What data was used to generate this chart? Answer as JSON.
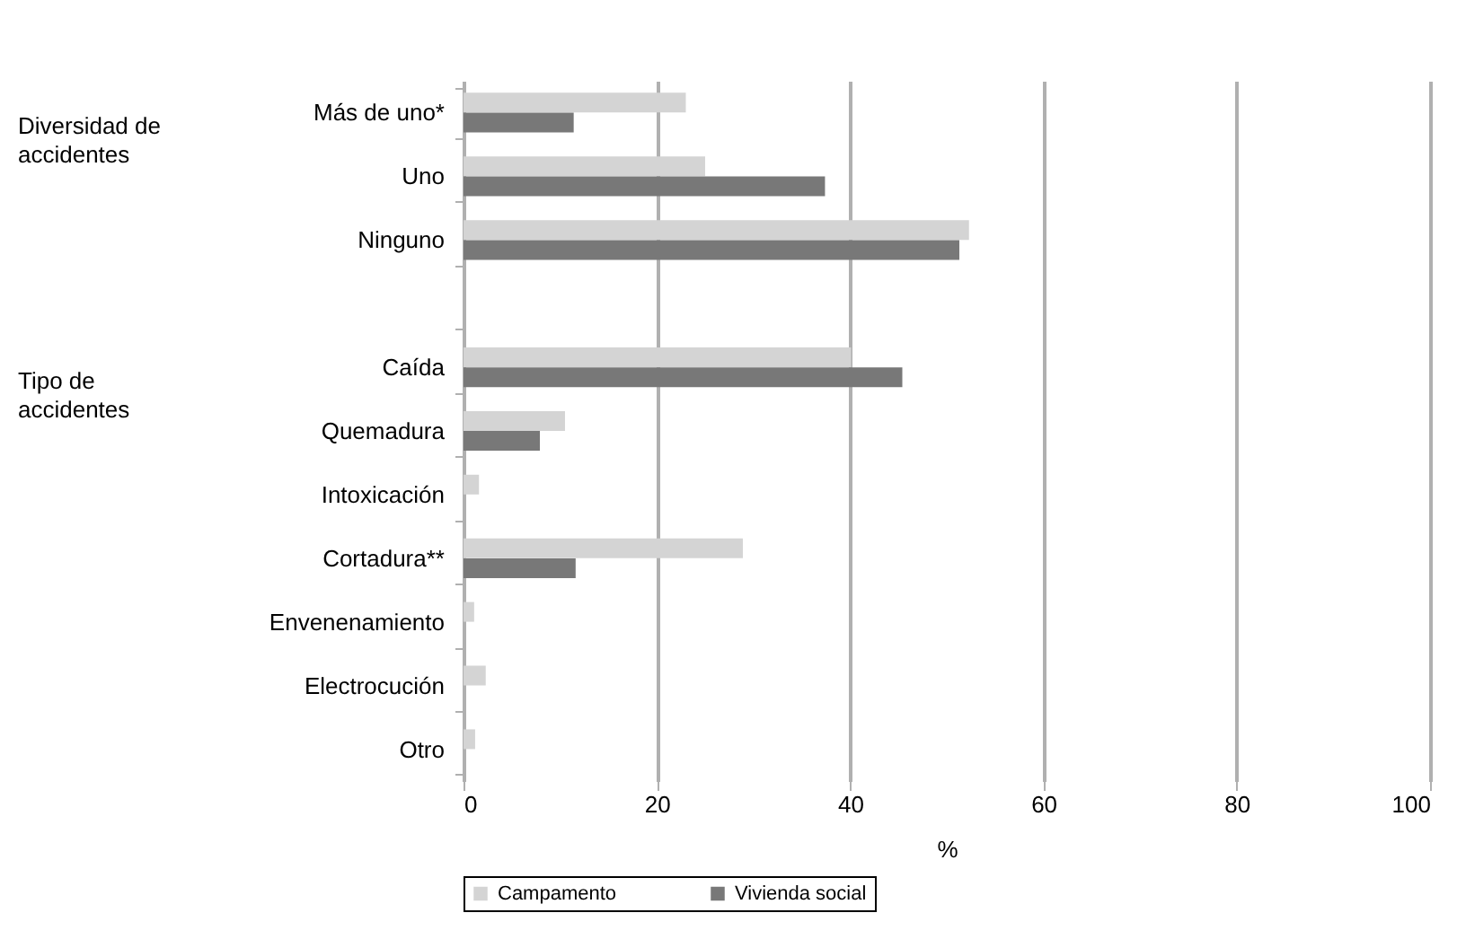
{
  "chart_data": {
    "type": "bar",
    "orientation": "horizontal",
    "xlabel": "%",
    "categories": [
      "Más de uno*",
      "Uno",
      "Ninguno",
      null,
      "Caída",
      "Quemadura",
      "Intoxicación",
      "Cortadura**",
      "Envenenamiento",
      "Electrocución",
      "Otro"
    ],
    "series": [
      {
        "name": "Campamento",
        "color": "#d4d4d4",
        "values": [
          23,
          25.0,
          52.3,
          null,
          40.1,
          10.5,
          1.6,
          28.9,
          1.1,
          2.3,
          1.2
        ]
      },
      {
        "name": "Vivienda social",
        "color": "#787878",
        "values": [
          11.4,
          37.4,
          51.3,
          null,
          45.4,
          7.9,
          0,
          11.6,
          0,
          0,
          0
        ]
      }
    ],
    "xlim": [
      0,
      100
    ],
    "xticks": [
      0,
      20,
      40,
      60,
      80,
      100
    ],
    "grid": "x",
    "legend": "bottom",
    "annotations": [
      "Diversidad de accidentes",
      "Tipo de accidentes"
    ]
  }
}
